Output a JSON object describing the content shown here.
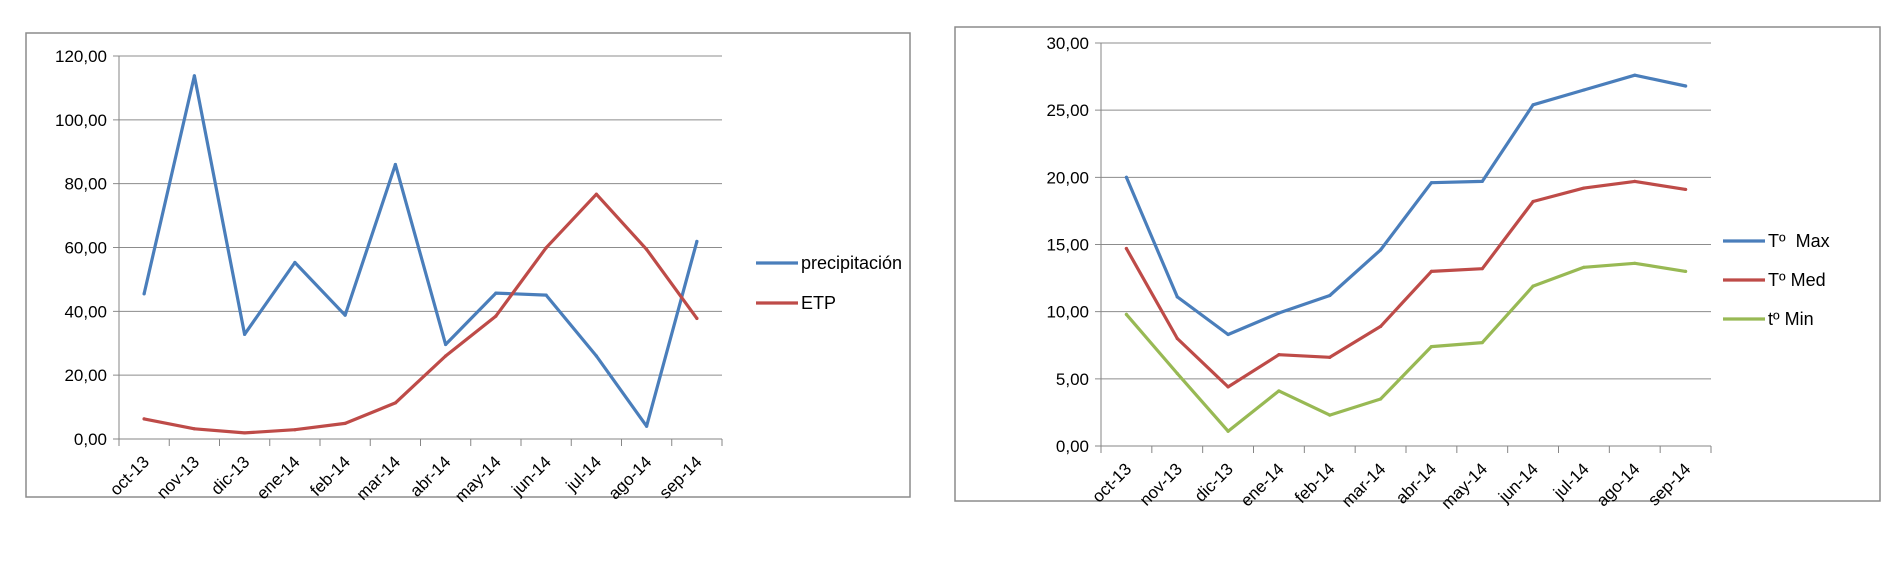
{
  "chart_data": [
    {
      "type": "line",
      "title": "",
      "xlabel": "",
      "ylabel": "",
      "ylim": [
        0,
        120
      ],
      "yticks": [
        "0,00",
        "20,00",
        "40,00",
        "60,00",
        "80,00",
        "100,00",
        "120,00"
      ],
      "categories": [
        "oct-13",
        "nov-13",
        "dic-13",
        "ene-14",
        "feb-14",
        "mar-14",
        "abr-14",
        "may-14",
        "jun-14",
        "jul-14",
        "ago-14",
        "sep-14"
      ],
      "legend_position": "right",
      "grid": true,
      "series": [
        {
          "name": "precipitación",
          "color": "#4a7ebb",
          "values": [
            45.5,
            113.8,
            32.8,
            55.3,
            38.8,
            86.0,
            29.6,
            45.7,
            45.1,
            26.0,
            4.0,
            61.9
          ]
        },
        {
          "name": "ETP",
          "color": "#be4b48",
          "values": [
            6.3,
            3.2,
            1.9,
            2.9,
            4.9,
            11.3,
            26.0,
            38.5,
            59.9,
            76.7,
            59.4,
            37.8
          ]
        }
      ]
    },
    {
      "type": "line",
      "title": "",
      "xlabel": "",
      "ylabel": "",
      "ylim": [
        0,
        30
      ],
      "yticks": [
        "0,00",
        "5,00",
        "10,00",
        "15,00",
        "20,00",
        "25,00",
        "30,00"
      ],
      "categories": [
        "oct-13",
        "nov-13",
        "dic-13",
        "ene-14",
        "feb-14",
        "mar-14",
        "abr-14",
        "may-14",
        "jun-14",
        "jul-14",
        "ago-14",
        "sep-14"
      ],
      "legend_position": "right",
      "grid": true,
      "series": [
        {
          "name": "Tº  Max",
          "color": "#4a7ebb",
          "values": [
            20.0,
            11.1,
            8.3,
            9.9,
            11.2,
            14.6,
            19.6,
            19.7,
            25.4,
            26.5,
            27.6,
            26.8
          ]
        },
        {
          "name": "Tº Med",
          "color": "#be4b48",
          "values": [
            14.7,
            8.0,
            4.4,
            6.8,
            6.6,
            8.9,
            13.0,
            13.2,
            18.2,
            19.2,
            19.7,
            19.1
          ]
        },
        {
          "name": "tº Min",
          "color": "#98b954",
          "values": [
            9.8,
            5.4,
            1.1,
            4.1,
            2.3,
            3.5,
            7.4,
            7.7,
            11.9,
            13.3,
            13.6,
            13.0
          ]
        }
      ]
    }
  ]
}
